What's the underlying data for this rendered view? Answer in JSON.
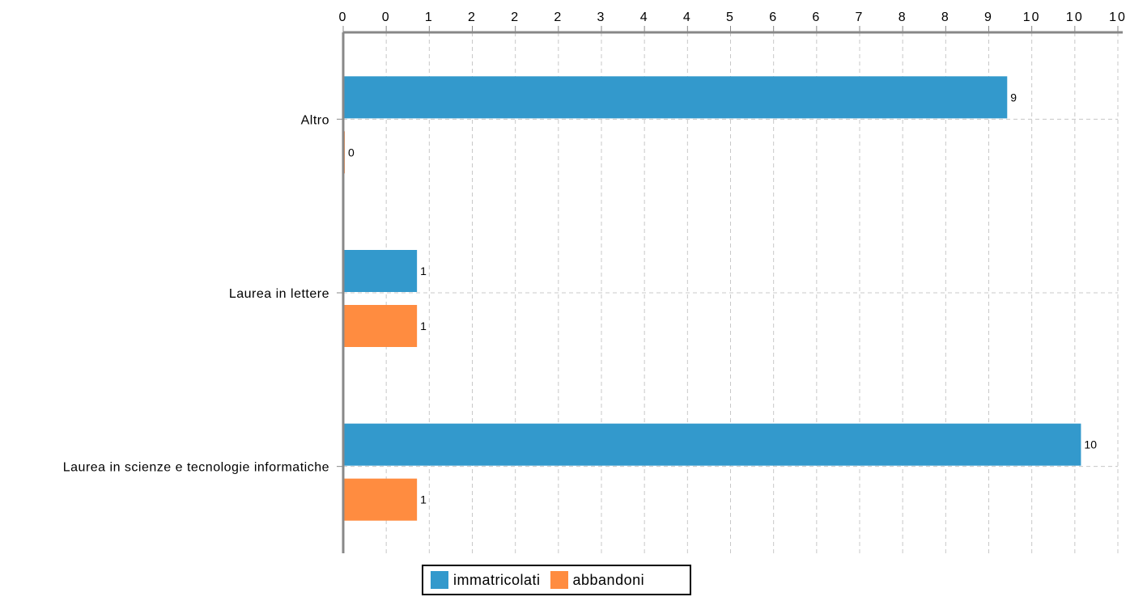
{
  "chart_data": {
    "type": "bar",
    "orientation": "horizontal",
    "categories": [
      "Altro",
      "Laurea in lettere",
      "Laurea in scienze e tecnologie informatiche"
    ],
    "series": [
      {
        "name": "immatricolati",
        "color": "#3399cc",
        "values": [
          9,
          1,
          10
        ]
      },
      {
        "name": "abbandoni",
        "color": "#ff8c40",
        "values": [
          0,
          1,
          1
        ]
      }
    ],
    "data_labels": {
      "immatricolati": [
        "9",
        "1",
        "10"
      ],
      "abbandoni": [
        "0",
        "1",
        "1"
      ]
    },
    "x_tick_labels": [
      "0",
      "0",
      "1",
      "2",
      "2",
      "2",
      "3",
      "4",
      "4",
      "5",
      "6",
      "6",
      "7",
      "8",
      "8",
      "9",
      "10",
      "10",
      "10"
    ],
    "xlim": [
      0,
      10.5
    ],
    "x_axis_position": "top",
    "grid": true,
    "legend_position": "bottom"
  }
}
